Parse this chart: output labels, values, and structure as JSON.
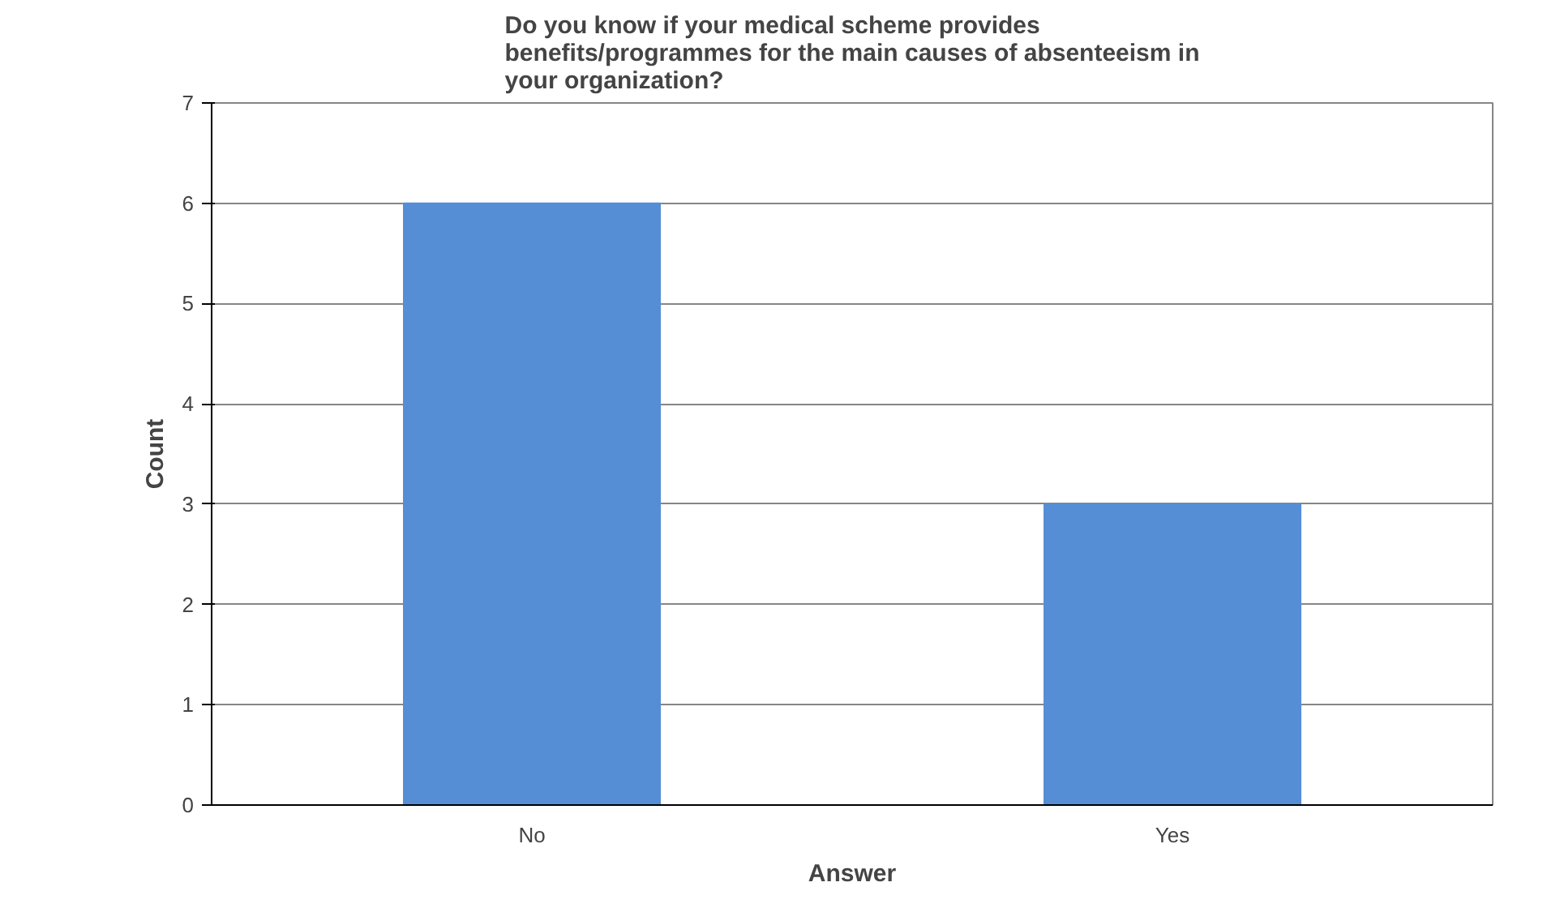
{
  "chart_data": {
    "type": "bar",
    "title": "Do you know if your medical scheme provides benefits/programmes for the main causes of absenteeism in your organization?",
    "xlabel": "Answer",
    "ylabel": "Count",
    "categories": [
      "No",
      "Yes"
    ],
    "values": [
      6,
      3
    ],
    "color": "#558ed5",
    "ylim": [
      0,
      7
    ],
    "yticks": [
      0,
      1,
      2,
      3,
      4,
      5,
      6,
      7
    ],
    "grid": "y"
  }
}
